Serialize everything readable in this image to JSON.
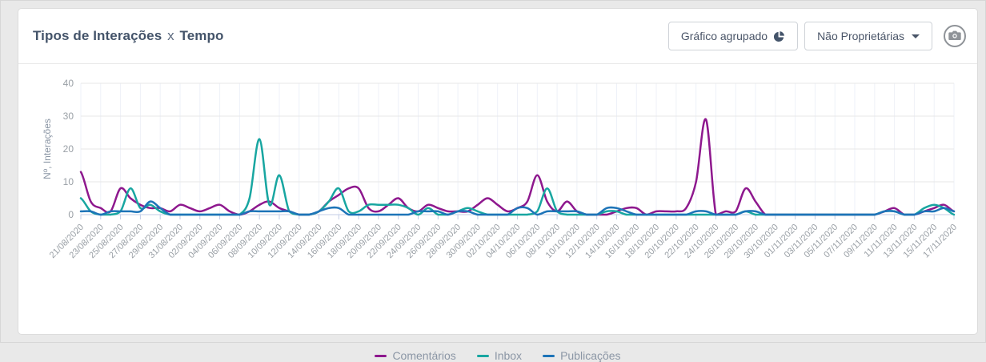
{
  "header": {
    "title_main": "Tipos de Interações",
    "title_sep": "x",
    "title_sub": "Tempo",
    "grouped_button_label": "Gráfico agrupado",
    "filter_button_label": "Não Proprietárias",
    "icons": [
      "pie-chart-icon",
      "caret-down-icon",
      "camera-icon"
    ]
  },
  "chart_data": {
    "type": "line",
    "title": "Tipos de Interações x Tempo",
    "ylabel": "Nº, Interações",
    "ylim": [
      0,
      40
    ],
    "yticks": [
      0,
      10,
      20,
      30,
      40
    ],
    "grid": true,
    "legend_position": "bottom",
    "x_start": "21/08/2020",
    "x_end": "17/11/2020",
    "x_step_days": 1,
    "x_labels": [
      "21/08/2020",
      "23/08/2020",
      "25/08/2020",
      "27/08/2020",
      "29/08/2020",
      "31/08/2020",
      "02/09/2020",
      "04/09/2020",
      "06/09/2020",
      "08/09/2020",
      "10/09/2020",
      "12/09/2020",
      "14/09/2020",
      "16/09/2020",
      "18/09/2020",
      "20/09/2020",
      "22/09/2020",
      "24/09/2020",
      "26/09/2020",
      "28/09/2020",
      "30/09/2020",
      "02/10/2020",
      "04/10/2020",
      "06/10/2020",
      "08/10/2020",
      "10/10/2020",
      "12/10/2020",
      "14/10/2020",
      "16/10/2020",
      "18/10/2020",
      "20/10/2020",
      "22/10/2020",
      "24/10/2020",
      "26/10/2020",
      "28/10/2020",
      "30/10/2020",
      "01/11/2020",
      "03/11/2020",
      "05/11/2020",
      "07/11/2020",
      "09/11/2020",
      "11/11/2020",
      "13/11/2020",
      "15/11/2020",
      "17/11/2020"
    ],
    "series": [
      {
        "name": "Comentários",
        "color": "#8e188e",
        "values": [
          13,
          4,
          2,
          1,
          8,
          5,
          3,
          2,
          2,
          1,
          3,
          2,
          1,
          2,
          3,
          1,
          0,
          1,
          3,
          4,
          2,
          1,
          0,
          0,
          1,
          4,
          6,
          8,
          8,
          2,
          1,
          3,
          5,
          2,
          1,
          3,
          2,
          1,
          1,
          1,
          3,
          5,
          3,
          1,
          2,
          4,
          12,
          4,
          1,
          4,
          1,
          0,
          0,
          0,
          1,
          2,
          2,
          0,
          1,
          1,
          1,
          2,
          10,
          29,
          0,
          1,
          1,
          8,
          4,
          0,
          0,
          0,
          0,
          0,
          0,
          0,
          0,
          0,
          0,
          0,
          0,
          1,
          2,
          0,
          0,
          1,
          2,
          3,
          1
        ]
      },
      {
        "name": "Inbox",
        "color": "#18a6a1",
        "values": [
          5,
          1,
          0,
          0,
          1,
          8,
          2,
          3,
          1,
          0,
          0,
          0,
          0,
          0,
          0,
          0,
          0,
          5,
          23,
          3,
          12,
          1,
          0,
          0,
          1,
          4,
          8,
          1,
          1,
          3,
          3,
          3,
          3,
          2,
          0,
          2,
          0,
          0,
          1,
          2,
          1,
          0,
          0,
          0,
          0,
          0,
          1,
          8,
          1,
          0,
          0,
          0,
          0,
          1,
          1,
          0,
          0,
          0,
          0,
          0,
          0,
          0,
          0,
          0,
          0,
          0,
          0,
          1,
          0,
          0,
          0,
          0,
          0,
          0,
          0,
          0,
          0,
          0,
          0,
          0,
          0,
          1,
          1,
          0,
          0,
          2,
          3,
          2,
          0
        ]
      },
      {
        "name": "Publicações",
        "color": "#1d74b8",
        "values": [
          1,
          1,
          0,
          1,
          1,
          1,
          1,
          4,
          2,
          0,
          0,
          0,
          0,
          0,
          0,
          0,
          0,
          1,
          1,
          1,
          1,
          1,
          0,
          0,
          1,
          2,
          2,
          0,
          0,
          0,
          0,
          0,
          0,
          0,
          1,
          1,
          1,
          0,
          1,
          1,
          0,
          0,
          0,
          0,
          2,
          2,
          0,
          1,
          1,
          1,
          1,
          0,
          0,
          2,
          2,
          1,
          0,
          0,
          0,
          0,
          0,
          0,
          1,
          1,
          0,
          0,
          0,
          1,
          1,
          0,
          0,
          0,
          0,
          0,
          0,
          0,
          0,
          0,
          0,
          0,
          0,
          1,
          1,
          0,
          0,
          1,
          1,
          2,
          1
        ]
      }
    ],
    "style": {
      "grid_color": "#e7e7e7",
      "axis_color": "#c3cde6",
      "vgrid_color": "#eef1f8",
      "tick_label_color": "#9aa0a6",
      "legend_text_color": "#8b96a5"
    }
  }
}
